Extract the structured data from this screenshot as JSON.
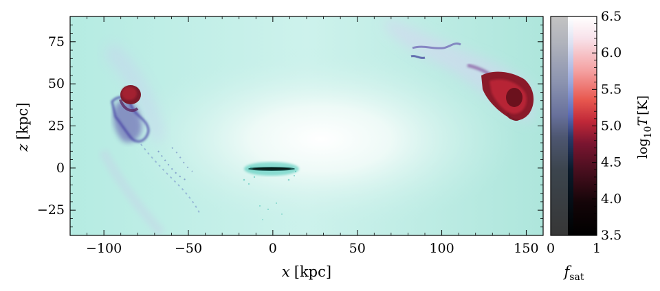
{
  "chart_data": {
    "type": "heatmap",
    "title": "",
    "xlabel": "x [kpc]",
    "ylabel": "z [kpc]",
    "xlim": [
      -120,
      160
    ],
    "ylim": [
      -40,
      90
    ],
    "x_ticks": [
      -100,
      -50,
      0,
      50,
      100,
      150
    ],
    "x_tick_labels": [
      "−100",
      "−50",
      "0",
      "50",
      "100",
      "150"
    ],
    "y_ticks": [
      -25,
      0,
      25,
      50,
      75
    ],
    "y_tick_labels": [
      "−25",
      "0",
      "25",
      "50",
      "75"
    ],
    "colorbar": {
      "label": "log10 T [K]",
      "label_main": "log",
      "label_sub": "10",
      "label_var": "T",
      "label_unit": "[K]",
      "range": [
        3.5,
        6.5
      ],
      "ticks": [
        3.5,
        4.0,
        4.5,
        5.0,
        5.5,
        6.0,
        6.5
      ],
      "tick_labels": [
        "3.5",
        "4.0",
        "4.5",
        "5.0",
        "5.5",
        "6.0",
        "6.5"
      ],
      "second_axis_label": "f_sat",
      "second_axis_label_main": "f",
      "second_axis_label_sub": "sat",
      "second_axis_ticks": [
        0,
        1
      ],
      "second_axis_tick_labels": [
        "0",
        "1"
      ]
    },
    "features": [
      {
        "kind": "disk",
        "x": [
          -14,
          14
        ],
        "z": 0,
        "color": "#2fb8a8"
      },
      {
        "kind": "cloud",
        "x": -82,
        "z": 43,
        "color": "#a01818"
      },
      {
        "kind": "cloud",
        "x": 140,
        "z": 40,
        "color": "#b21c1c"
      }
    ],
    "background_color": "#b9ebe3"
  }
}
